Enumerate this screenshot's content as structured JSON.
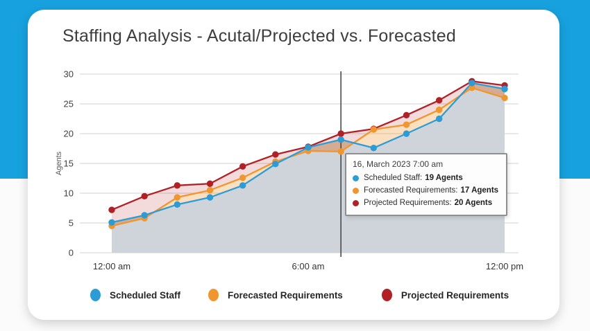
{
  "page": {
    "title": "Staffing Analysis - Acutal/Projected vs. Forecasted"
  },
  "colors": {
    "background_blue": "#17A2DF",
    "card": "#FFFFFF",
    "gridline": "#DBDBDB",
    "gray_area": "#CFD4DB",
    "pink_fill": "rgba(178,33,39,0.16)",
    "orange_fill": "rgba(240,150,46,0.30)",
    "crosshair": "#4A4A4A",
    "scheduled_blue": "#2B9CD6",
    "forecasted_orange": "#F0962E",
    "projected_red": "#B02127"
  },
  "chart_data": {
    "type": "line",
    "title": "Staffing Analysis - Acutal/Projected vs. Forecasted",
    "xlabel": "",
    "ylabel": "Agents",
    "ylim": [
      0,
      30
    ],
    "yticks": [
      0,
      5,
      10,
      15,
      20,
      25,
      30
    ],
    "grid": "horizontal",
    "legend_position": "bottom",
    "x": [
      "12:00 am",
      "1:00 am",
      "2:00 am",
      "3:00 am",
      "4:00 am",
      "5:00 am",
      "6:00 am",
      "7:00 am",
      "8:00 am",
      "9:00 am",
      "10:00 am",
      "11:00 am",
      "12:00 pm"
    ],
    "x_axis_ticks": [
      {
        "label": "12:00 am",
        "index": 0
      },
      {
        "label": "6:00 am",
        "index": 6
      },
      {
        "label": "12:00 pm",
        "index": 12
      }
    ],
    "crosshair_index": 7,
    "series": [
      {
        "name": "Scheduled Staff",
        "color": "#2B9CD6",
        "values": [
          5.1,
          6.3,
          8.1,
          9.3,
          11.3,
          14.9,
          17.7,
          19,
          17.6,
          20,
          22.5,
          28.5,
          27.5
        ]
      },
      {
        "name": "Forecasted Requirements",
        "color": "#F0962E",
        "values": [
          4.5,
          5.8,
          9.3,
          10.5,
          12.6,
          15.3,
          17.1,
          17,
          20.7,
          21.5,
          24,
          27.7,
          26
        ]
      },
      {
        "name": "Projected Requirements",
        "color": "#B02127",
        "values": [
          7.2,
          9.5,
          11.3,
          11.6,
          14.5,
          16.5,
          17.8,
          20,
          20.8,
          23.1,
          25.6,
          28.8,
          28.1
        ]
      }
    ]
  },
  "tooltip": {
    "header": "16, March 2023 7:00 am",
    "rows": [
      {
        "label": "Scheduled Staff:",
        "value": "19 Agents",
        "color": "#2B9CD6"
      },
      {
        "label": "Forecasted Requirements:",
        "value": "17 Agents",
        "color": "#F0962E"
      },
      {
        "label": "Projected Requirements:",
        "value": "20 Agents",
        "color": "#B02127"
      }
    ]
  },
  "legend": {
    "items": [
      {
        "label": "Scheduled Staff",
        "color": "#2B9CD6"
      },
      {
        "label": "Forecasted Requirements",
        "color": "#F0962E"
      },
      {
        "label": "Projected Requirements",
        "color": "#B02127"
      }
    ]
  }
}
